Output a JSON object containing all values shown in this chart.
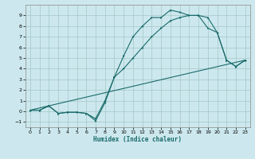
{
  "xlabel": "Humidex (Indice chaleur)",
  "bg_color": "#cce8ee",
  "grid_color": "#aacccc",
  "line_color": "#1a6b6b",
  "xlim": [
    -0.5,
    23.5
  ],
  "ylim": [
    -1.5,
    10.0
  ],
  "yticks": [
    -1,
    0,
    1,
    2,
    3,
    4,
    5,
    6,
    7,
    8,
    9
  ],
  "xticks": [
    0,
    1,
    2,
    3,
    4,
    5,
    6,
    7,
    8,
    9,
    10,
    11,
    12,
    13,
    14,
    15,
    16,
    17,
    18,
    19,
    20,
    21,
    22,
    23
  ],
  "line1_x": [
    0,
    1,
    2,
    3,
    4,
    5,
    6,
    7,
    8,
    9,
    10,
    11,
    12,
    13,
    14,
    15,
    16,
    17,
    18,
    19,
    20,
    21,
    22,
    23
  ],
  "line1_y": [
    0.1,
    0.1,
    0.5,
    -0.2,
    -0.1,
    -0.1,
    -0.2,
    -0.7,
    1.0,
    3.2,
    5.2,
    7.0,
    8.0,
    8.8,
    8.8,
    9.5,
    9.3,
    9.0,
    9.0,
    7.8,
    7.4,
    4.8,
    4.2,
    4.8
  ],
  "line2_x": [
    0,
    1,
    2,
    3,
    4,
    5,
    6,
    7,
    8,
    9,
    10,
    11,
    12,
    13,
    14,
    15,
    16,
    17,
    18,
    19,
    20,
    21,
    22,
    23
  ],
  "line2_y": [
    0.1,
    0.1,
    0.5,
    -0.2,
    -0.1,
    -0.1,
    -0.2,
    -0.9,
    0.8,
    3.2,
    4.0,
    5.0,
    6.0,
    7.0,
    7.8,
    8.5,
    8.8,
    9.0,
    9.0,
    8.8,
    7.4,
    4.8,
    4.2,
    4.8
  ],
  "line3_x": [
    0,
    23
  ],
  "line3_y": [
    0.1,
    4.8
  ]
}
